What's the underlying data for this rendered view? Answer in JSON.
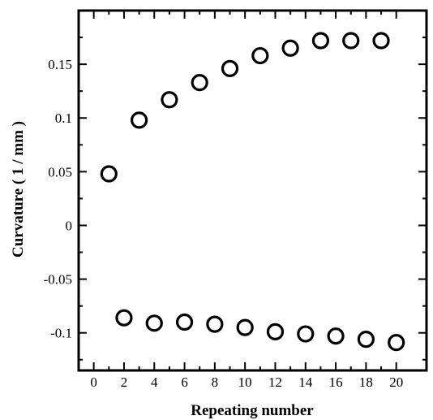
{
  "chart_data": {
    "type": "scatter",
    "title": "",
    "xlabel": "Repeating number",
    "ylabel": "Curvature ( 1 / mm )",
    "xlim": [
      -1,
      22
    ],
    "ylim": [
      -0.135,
      0.2
    ],
    "x_ticks": [
      0,
      2,
      4,
      6,
      8,
      10,
      12,
      14,
      16,
      18,
      20
    ],
    "x_tick_labels": [
      "0",
      "2",
      "4",
      "6",
      "8",
      "10",
      "12",
      "14",
      "16",
      "18",
      "20"
    ],
    "y_ticks": [
      -0.1,
      -0.05,
      0,
      0.05,
      0.1,
      0.15
    ],
    "y_tick_labels": [
      "-0.1",
      "-0.05",
      "0",
      "0.05",
      "0.1",
      "0.15"
    ],
    "grid": false,
    "marker": "open-circle",
    "series": [
      {
        "x": [
          1,
          3,
          5,
          7,
          9,
          11,
          13,
          15,
          17,
          19
        ],
        "y": [
          0.048,
          0.098,
          0.117,
          0.133,
          0.146,
          0.158,
          0.165,
          0.172,
          0.172,
          0.172
        ]
      },
      {
        "x": [
          2,
          4,
          6,
          8,
          10,
          12,
          14,
          16,
          18,
          20
        ],
        "y": [
          -0.086,
          -0.091,
          -0.09,
          -0.092,
          -0.095,
          -0.099,
          -0.101,
          -0.103,
          -0.106,
          -0.109
        ]
      }
    ]
  }
}
